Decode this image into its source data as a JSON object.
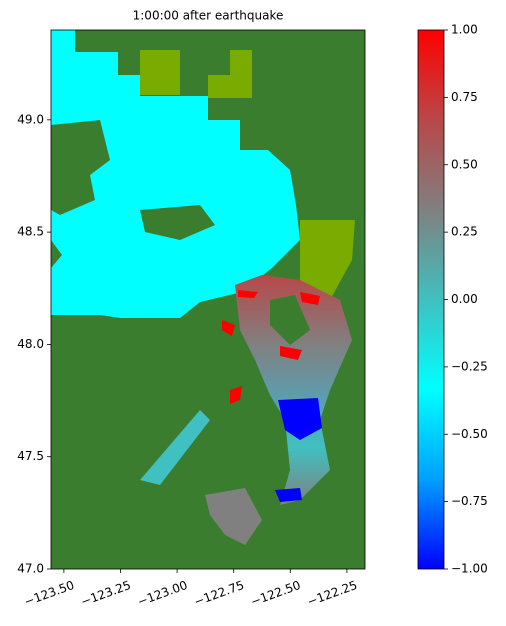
{
  "chart_data": {
    "type": "heatmap",
    "title": "1:00:00 after earthquake",
    "xlim": [
      -123.557,
      -122.17
    ],
    "ylim": [
      47.0,
      49.4
    ],
    "xticks": [
      {
        "value": -123.5,
        "label": "−123.50"
      },
      {
        "value": -123.25,
        "label": "−123.25"
      },
      {
        "value": -123.0,
        "label": "−123.00"
      },
      {
        "value": -122.75,
        "label": "−122.75"
      },
      {
        "value": -122.5,
        "label": "−122.50"
      },
      {
        "value": -122.25,
        "label": "−122.25"
      }
    ],
    "yticks": [
      {
        "value": 47.0,
        "label": "47.0"
      },
      {
        "value": 47.5,
        "label": "47.5"
      },
      {
        "value": 48.0,
        "label": "48.0"
      },
      {
        "value": 48.5,
        "label": "48.5"
      },
      {
        "value": 49.0,
        "label": "49.0"
      }
    ],
    "colorbar": {
      "lim": [
        -1,
        1
      ],
      "colors": [
        "#0000ff",
        "#00a0ff",
        "#00ffff",
        "#40c0c0",
        "#808080",
        "#b84848",
        "#ff0000"
      ],
      "ticks": [
        {
          "value": -1,
          "label": "−1.00"
        },
        {
          "value": -0.75,
          "label": "−0.75"
        },
        {
          "value": -0.5,
          "label": "−0.50"
        },
        {
          "value": -0.25,
          "label": "−0.25"
        },
        {
          "value": 0,
          "label": "0.00"
        },
        {
          "value": 0.25,
          "label": "0.25"
        },
        {
          "value": 0.5,
          "label": "0.50"
        },
        {
          "value": 0.75,
          "label": "0.75"
        },
        {
          "value": 1,
          "label": "1.00"
        }
      ]
    }
  }
}
